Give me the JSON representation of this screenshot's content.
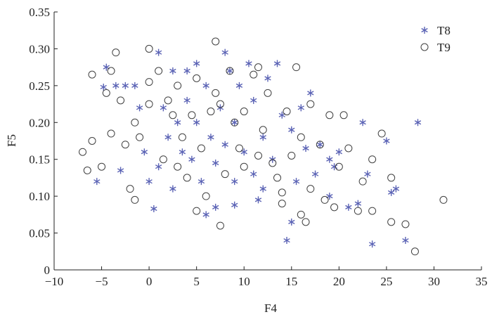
{
  "chart_data": {
    "type": "scatter",
    "x_label": "F4",
    "y_label": "F5",
    "xlim": [
      -10,
      35
    ],
    "ylim": [
      0,
      0.35
    ],
    "xticks": [
      {
        "value": -10,
        "label": "−10"
      },
      {
        "value": -5,
        "label": "−5"
      },
      0,
      5,
      10,
      15,
      20,
      25,
      30,
      35
    ],
    "yticks": [
      0,
      0.05,
      {
        "value": 0.1,
        "label": "0.10"
      },
      0.15,
      {
        "value": 0.2,
        "label": "0.20"
      },
      0.25,
      {
        "value": 0.3,
        "label": "0.30"
      },
      0.35
    ],
    "legend": "upper right",
    "series": [
      {
        "name": "T8",
        "color": "#5b63b5",
        "marker": "star",
        "x": [
          -4.5,
          -5.5,
          -4.8,
          -3.5,
          -3,
          -2.5,
          -1.5,
          -1,
          -0.5,
          0,
          0.5,
          1,
          1,
          1.5,
          2,
          2.5,
          2.5,
          3,
          3.5,
          4,
          4,
          4.5,
          5,
          5,
          5.5,
          6,
          6,
          6.5,
          7,
          7,
          7.5,
          8,
          8,
          8.5,
          9,
          9,
          9.5,
          10,
          10.5,
          11,
          11,
          11.5,
          12,
          12.5,
          13,
          13.5,
          14,
          14.5,
          15,
          15,
          15.5,
          16,
          17,
          17.5,
          18,
          19,
          19.5,
          20,
          21,
          22,
          22.5,
          23,
          23.5,
          25,
          25.5,
          26,
          27,
          28.3,
          9,
          12,
          16.5,
          19
        ],
        "values": [
          0.275,
          0.12,
          0.248,
          0.25,
          0.135,
          0.25,
          0.25,
          0.22,
          0.16,
          0.12,
          0.083,
          0.14,
          0.295,
          0.22,
          0.18,
          0.11,
          0.27,
          0.2,
          0.16,
          0.27,
          0.23,
          0.15,
          0.28,
          0.2,
          0.12,
          0.075,
          0.25,
          0.18,
          0.145,
          0.085,
          0.22,
          0.295,
          0.17,
          0.27,
          0.12,
          0.2,
          0.25,
          0.16,
          0.28,
          0.13,
          0.23,
          0.095,
          0.18,
          0.26,
          0.15,
          0.28,
          0.21,
          0.04,
          0.065,
          0.19,
          0.12,
          0.22,
          0.24,
          0.13,
          0.17,
          0.1,
          0.14,
          0.16,
          0.085,
          0.09,
          0.2,
          0.13,
          0.035,
          0.175,
          0.105,
          0.11,
          0.04,
          0.2,
          0.088,
          0.11,
          0.165,
          0.15
        ]
      },
      {
        "name": "T9",
        "color": "#404040",
        "marker": "circle",
        "x": [
          -7,
          -6.5,
          -6,
          -6,
          -5,
          -4.5,
          -4,
          -4,
          -3.5,
          -3,
          -2.5,
          -2,
          -1.5,
          -1.5,
          -1,
          0,
          0,
          0,
          1,
          1.5,
          2,
          2.5,
          3,
          3,
          3.5,
          4,
          4.5,
          5,
          5,
          5.5,
          6,
          6.5,
          7,
          7,
          7.5,
          7.5,
          8,
          8.5,
          9,
          9.5,
          10,
          10,
          11,
          11.5,
          11.5,
          12,
          12.5,
          13,
          13.5,
          14,
          14,
          14.5,
          15,
          15.5,
          16,
          16,
          16.5,
          17,
          17,
          18,
          18.5,
          19,
          19.5,
          20,
          20.5,
          21,
          22,
          22.5,
          23.5,
          23.5,
          25.5,
          25.5,
          27,
          28,
          31,
          24.5
        ],
        "values": [
          0.16,
          0.135,
          0.265,
          0.175,
          0.14,
          0.24,
          0.185,
          0.27,
          0.295,
          0.23,
          0.17,
          0.11,
          0.095,
          0.2,
          0.18,
          0.255,
          0.3,
          0.225,
          0.27,
          0.15,
          0.23,
          0.21,
          0.25,
          0.14,
          0.18,
          0.125,
          0.21,
          0.26,
          0.08,
          0.165,
          0.1,
          0.215,
          0.31,
          0.24,
          0.225,
          0.06,
          0.13,
          0.27,
          0.2,
          0.165,
          0.14,
          0.215,
          0.265,
          0.275,
          0.155,
          0.19,
          0.24,
          0.145,
          0.125,
          0.105,
          0.09,
          0.215,
          0.155,
          0.275,
          0.18,
          0.075,
          0.065,
          0.225,
          0.11,
          0.17,
          0.095,
          0.21,
          0.085,
          0.14,
          0.21,
          0.165,
          0.08,
          0.12,
          0.15,
          0.08,
          0.125,
          0.065,
          0.062,
          0.025,
          0.095,
          0.185
        ]
      }
    ]
  }
}
